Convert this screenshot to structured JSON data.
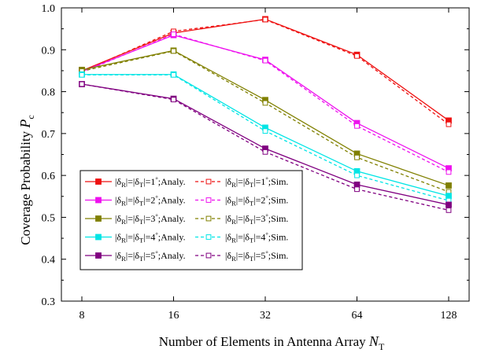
{
  "chart_data": {
    "type": "line",
    "title": "",
    "xlabel": "Number of  Elements in Antenna Array ",
    "xlabel_symbol": "N",
    "xlabel_subscript": "T",
    "ylabel": "Coverage Probability ",
    "ylabel_symbol": "P",
    "ylabel_subscript": "c",
    "x": [
      8,
      16,
      32,
      64,
      128
    ],
    "x_tick_labels": [
      "8",
      "16",
      "32",
      "64",
      "128"
    ],
    "x_scale": "log2",
    "ylim": [
      0.3,
      1.0
    ],
    "y_ticks": [
      0.3,
      0.4,
      0.5,
      0.6,
      0.7,
      0.8,
      0.9,
      1.0
    ],
    "y_tick_labels": [
      "0.3",
      "0.4",
      "0.5",
      "0.6",
      "0.7",
      "0.8",
      "0.9",
      "1.0"
    ],
    "grid": false,
    "legend_position": "lower-left",
    "series": [
      {
        "delta": "1",
        "kind": "Analy.",
        "color": "#ee1111",
        "style": "solid",
        "marker": "filled-square",
        "values": [
          0.85,
          0.94,
          0.973,
          0.888,
          0.731
        ]
      },
      {
        "delta": "1",
        "kind": "Sim.",
        "color": "#ee1111",
        "style": "dashed",
        "marker": "open-square",
        "values": [
          0.848,
          0.944,
          0.972,
          0.885,
          0.722
        ]
      },
      {
        "delta": "2",
        "kind": "Analy.",
        "color": "#ee11ee",
        "style": "solid",
        "marker": "filled-square",
        "values": [
          0.848,
          0.935,
          0.876,
          0.725,
          0.617
        ]
      },
      {
        "delta": "2",
        "kind": "Sim.",
        "color": "#ee11ee",
        "style": "dashed",
        "marker": "open-square",
        "values": [
          0.846,
          0.937,
          0.874,
          0.718,
          0.608
        ]
      },
      {
        "delta": "3",
        "kind": "Analy.",
        "color": "#808000",
        "style": "solid",
        "marker": "filled-square",
        "values": [
          0.852,
          0.898,
          0.78,
          0.652,
          0.576
        ]
      },
      {
        "delta": "3",
        "kind": "Sim.",
        "color": "#808000",
        "style": "dashed",
        "marker": "open-square",
        "values": [
          0.849,
          0.897,
          0.773,
          0.643,
          0.561
        ]
      },
      {
        "delta": "4",
        "kind": "Analy.",
        "color": "#00e5e5",
        "style": "solid",
        "marker": "filled-square",
        "values": [
          0.841,
          0.841,
          0.714,
          0.61,
          0.551
        ]
      },
      {
        "delta": "4",
        "kind": "Sim.",
        "color": "#00e5e5",
        "style": "dashed",
        "marker": "open-square",
        "values": [
          0.84,
          0.84,
          0.706,
          0.6,
          0.54
        ]
      },
      {
        "delta": "5",
        "kind": "Analy.",
        "color": "#800080",
        "style": "solid",
        "marker": "filled-square",
        "values": [
          0.818,
          0.783,
          0.664,
          0.578,
          0.53
        ]
      },
      {
        "delta": "5",
        "kind": "Sim.",
        "color": "#800080",
        "style": "dashed",
        "marker": "open-square",
        "values": [
          0.818,
          0.781,
          0.656,
          0.567,
          0.517
        ]
      }
    ],
    "legend": {
      "delta_symbol": "δ",
      "sub_r": "R",
      "sub_t": "T",
      "degree": "°",
      "bar": "|",
      "equals": "=",
      "separator": ";"
    }
  }
}
